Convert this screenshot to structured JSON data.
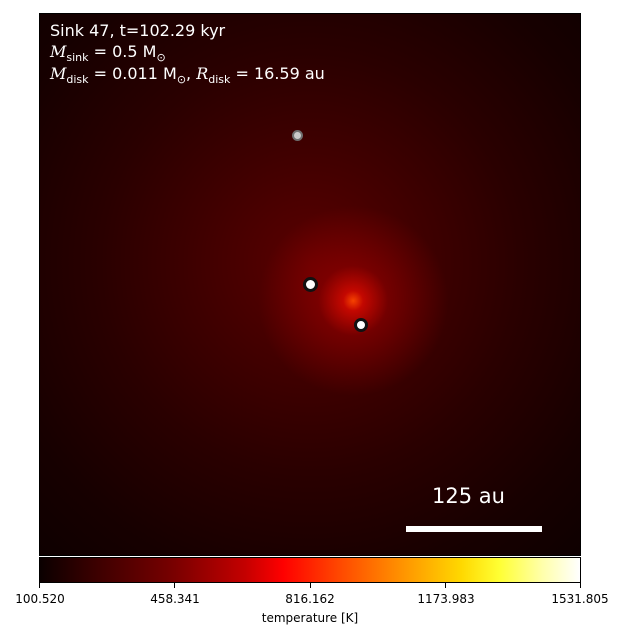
{
  "annotation": {
    "line1": "Sink 47, t=102.29 kyr",
    "msink_symbol": "M",
    "msink_subscript": "sink",
    "msink_value": " = 0.5 M",
    "mdisk_symbol": "M",
    "mdisk_subscript": "disk",
    "mdisk_value": " = 0.011 M",
    "rdisk_symbol": "R",
    "rdisk_subscript": "disk",
    "rdisk_value": " = 16.59 au",
    "sun_symbol": "⊙"
  },
  "scale_bar": {
    "label": "125 au"
  },
  "colorbar": {
    "label": "temperature [K]",
    "ticks": [
      "100.520",
      "458.341",
      "816.162",
      "1173.983",
      "1531.805"
    ],
    "colormap": "hot"
  },
  "sinks": [
    {
      "name": "secondary-sink",
      "fill": "#c9c9c9"
    },
    {
      "name": "primary-sink",
      "fill": "#ffffff"
    },
    {
      "name": "companion-sink",
      "fill": "#ffffff"
    }
  ]
}
